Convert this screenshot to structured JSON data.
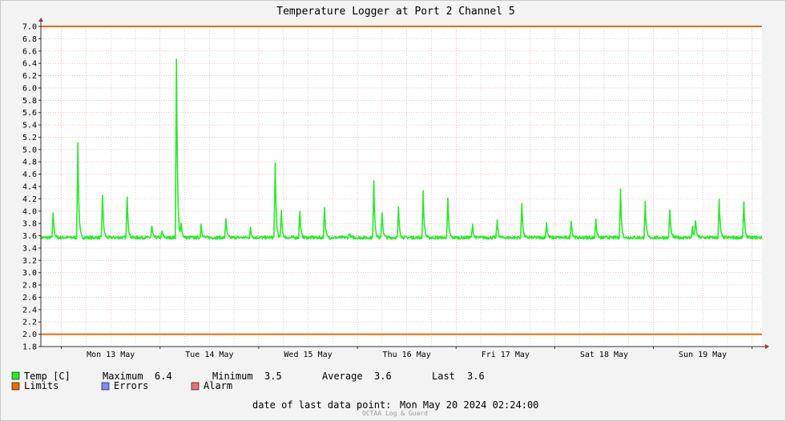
{
  "chart_data": {
    "type": "line",
    "title": "Temperature Logger at Port 2 Channel 5",
    "ylim": [
      1.8,
      7.0
    ],
    "y_ticks": [
      "7.0",
      "6.8",
      "6.6",
      "6.4",
      "6.2",
      "6.0",
      "5.8",
      "5.6",
      "5.4",
      "5.2",
      "5.0",
      "4.8",
      "4.6",
      "4.4",
      "4.2",
      "4.0",
      "3.8",
      "3.6",
      "3.4",
      "3.2",
      "3.0",
      "2.8",
      "2.6",
      "2.4",
      "2.2",
      "2.0",
      "1.8"
    ],
    "x_range_days": [
      "2024-05-12 19:00",
      "2024-05-20 02:24"
    ],
    "x_day_labels": [
      "Mon 13 May",
      "Tue 14 May",
      "Wed 15 May",
      "Thu 16 May",
      "Fri 17 May",
      "Sat 18 May",
      "Sun 19 May"
    ],
    "limits": {
      "upper": 7.0,
      "lower": 2.0
    },
    "baseline": 3.57,
    "series": [
      {
        "name": "Temp [C]",
        "color": "#22ee22",
        "peaks": [
          {
            "t": "2024-05-12 22:00",
            "v": 3.98
          },
          {
            "t": "2024-05-13 04:00",
            "v": 5.1
          },
          {
            "t": "2024-05-13 10:00",
            "v": 4.27
          },
          {
            "t": "2024-05-13 16:00",
            "v": 4.25
          },
          {
            "t": "2024-05-13 22:00",
            "v": 3.75
          },
          {
            "t": "2024-05-14 00:30",
            "v": 3.67
          },
          {
            "t": "2024-05-14 04:00",
            "v": 6.45
          },
          {
            "t": "2024-05-14 05:10",
            "v": 3.82
          },
          {
            "t": "2024-05-14 10:00",
            "v": 3.79
          },
          {
            "t": "2024-05-14 16:00",
            "v": 3.89
          },
          {
            "t": "2024-05-14 22:00",
            "v": 3.72
          },
          {
            "t": "2024-05-15 04:00",
            "v": 4.77
          },
          {
            "t": "2024-05-15 05:30",
            "v": 3.99
          },
          {
            "t": "2024-05-15 10:00",
            "v": 3.99
          },
          {
            "t": "2024-05-15 16:00",
            "v": 4.06
          },
          {
            "t": "2024-05-15 22:00",
            "v": 3.65
          },
          {
            "t": "2024-05-16 04:00",
            "v": 4.47
          },
          {
            "t": "2024-05-16 06:00",
            "v": 3.99
          },
          {
            "t": "2024-05-16 10:00",
            "v": 4.05
          },
          {
            "t": "2024-05-16 16:00",
            "v": 4.31
          },
          {
            "t": "2024-05-16 22:00",
            "v": 4.19
          },
          {
            "t": "2024-05-17 04:00",
            "v": 3.77
          },
          {
            "t": "2024-05-17 10:00",
            "v": 3.84
          },
          {
            "t": "2024-05-17 16:00",
            "v": 4.13
          },
          {
            "t": "2024-05-17 22:00",
            "v": 3.81
          },
          {
            "t": "2024-05-18 04:00",
            "v": 3.86
          },
          {
            "t": "2024-05-18 10:00",
            "v": 3.88
          },
          {
            "t": "2024-05-18 16:00",
            "v": 4.35
          },
          {
            "t": "2024-05-18 22:00",
            "v": 4.14
          },
          {
            "t": "2024-05-19 04:00",
            "v": 4.02
          },
          {
            "t": "2024-05-19 09:30",
            "v": 3.73
          },
          {
            "t": "2024-05-19 10:15",
            "v": 3.87
          },
          {
            "t": "2024-05-19 16:00",
            "v": 4.18
          },
          {
            "t": "2024-05-19 22:00",
            "v": 4.14
          }
        ]
      }
    ],
    "colors": {
      "limits": "#ee6a00",
      "errors": "#7b8cf5",
      "alarm": "#f07070",
      "grid": "#e2a0a0",
      "axis": "#303030",
      "arrow": "#a03030"
    }
  },
  "legend": {
    "temp_label": "Temp [C]",
    "maximum_label": "Maximum",
    "maximum_value": "6.4",
    "minimum_label": "Minimum",
    "minimum_value": "3.5",
    "average_label": "Average",
    "average_value": "3.6",
    "last_label": "Last",
    "last_value": "3.6",
    "limits_label": "Limits",
    "errors_label": "Errors",
    "alarm_label": "Alarm"
  },
  "footer": {
    "last_point_label": "date of last data point:",
    "last_point_value": "Mon May 20 2024 02:24:00",
    "credit": "OCTAA Log & Guard"
  }
}
